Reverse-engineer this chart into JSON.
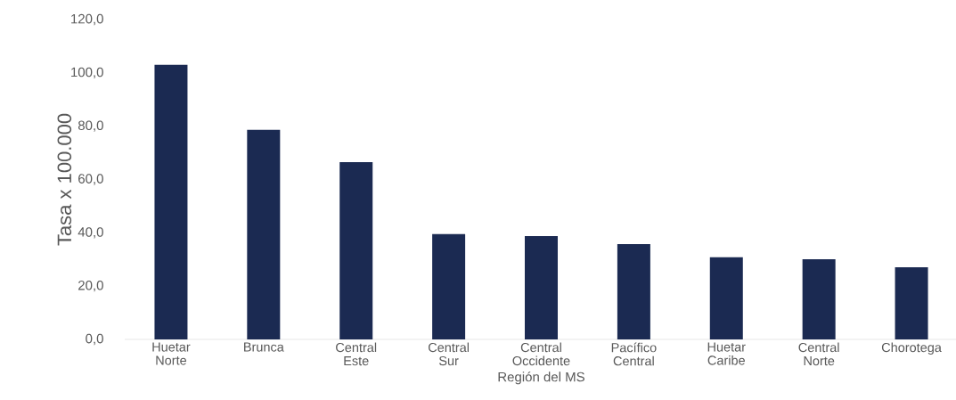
{
  "chart_data": {
    "type": "bar",
    "xlabel": "Región del MS",
    "ylabel": "Tasa x 100.000",
    "categories": [
      "Huetar Norte",
      "Brunca",
      "Central Este",
      "Central Sur",
      "Central Occidente",
      "Pacífico Central",
      "Huetar Caribe",
      "Central Norte",
      "Chorotega"
    ],
    "values": [
      103.0,
      78.6,
      66.5,
      39.5,
      38.8,
      35.8,
      30.8,
      30.1,
      27.1
    ],
    "color": "#1b2a52",
    "ylim": [
      0,
      120
    ],
    "yticks": [
      {
        "value": 0,
        "label": "0,0"
      },
      {
        "value": 20,
        "label": "20,0"
      },
      {
        "value": 40,
        "label": "40,0"
      },
      {
        "value": 60,
        "label": "60,0"
      },
      {
        "value": 80,
        "label": "80,0"
      },
      {
        "value": 100,
        "label": "100,0"
      },
      {
        "value": 120,
        "label": "120,0"
      }
    ]
  }
}
